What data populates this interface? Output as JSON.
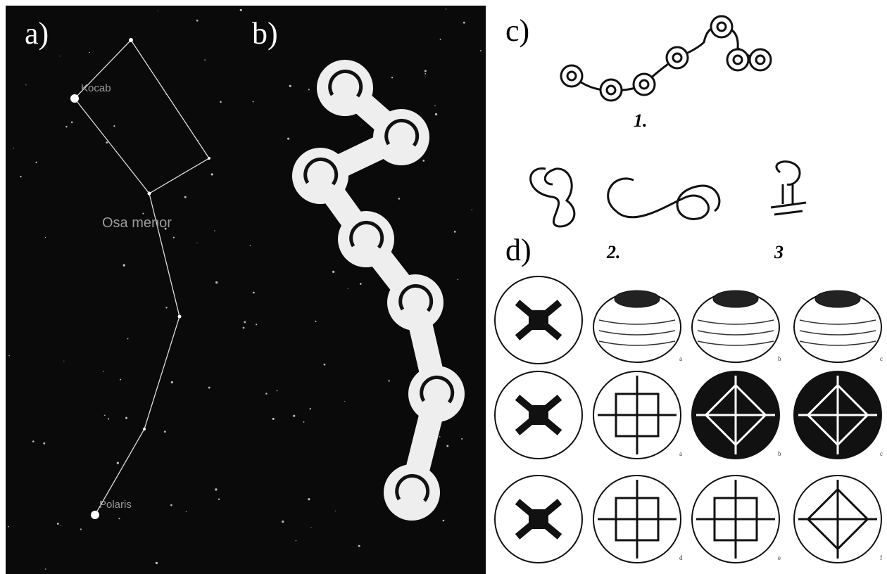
{
  "panels": {
    "a": {
      "label": "a)",
      "stars": [
        "Kocab",
        "Polaris"
      ],
      "constellation": "Osa menor"
    },
    "b": {
      "label": "b)"
    },
    "c": {
      "label": "c)",
      "figures": [
        "1.",
        "2.",
        "3"
      ]
    },
    "d": {
      "label": "d)",
      "row1": [
        "a",
        "b",
        "c"
      ],
      "row2": [
        "a",
        "b",
        "c"
      ],
      "row3": [
        "d",
        "e",
        "f"
      ]
    }
  }
}
